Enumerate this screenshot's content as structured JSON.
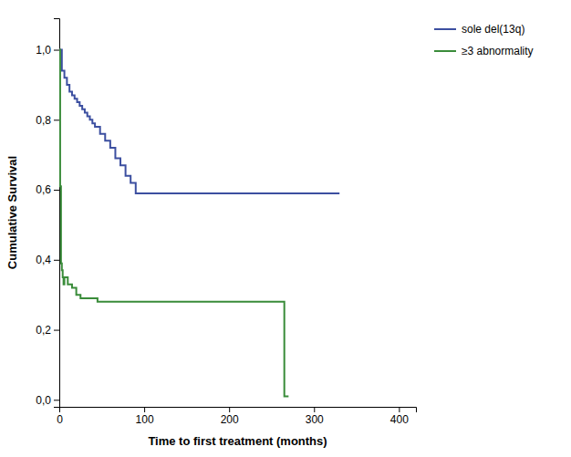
{
  "chart_data": {
    "type": "step",
    "x_label": "Time to first treatment (months)",
    "y_label": "Cumulative Survival",
    "series": [
      {
        "name": "sole del(13q)",
        "color": "#3c4fa0",
        "x": [
          0,
          3,
          3,
          6,
          6,
          9,
          9,
          12,
          12,
          15,
          15,
          18,
          18,
          21,
          21,
          24,
          24,
          27,
          27,
          30,
          30,
          33,
          33,
          36,
          36,
          39,
          39,
          42,
          42,
          48,
          48,
          54,
          54,
          60,
          60,
          66,
          66,
          72,
          72,
          78,
          78,
          84,
          84,
          90,
          90,
          330
        ],
        "values": [
          1.0,
          1.0,
          0.94,
          0.94,
          0.92,
          0.92,
          0.9,
          0.9,
          0.88,
          0.88,
          0.87,
          0.87,
          0.86,
          0.86,
          0.85,
          0.85,
          0.84,
          0.84,
          0.83,
          0.83,
          0.82,
          0.82,
          0.81,
          0.81,
          0.8,
          0.8,
          0.79,
          0.79,
          0.78,
          0.78,
          0.76,
          0.76,
          0.74,
          0.74,
          0.72,
          0.72,
          0.69,
          0.69,
          0.67,
          0.67,
          0.64,
          0.64,
          0.62,
          0.62,
          0.59,
          0.59
        ]
      },
      {
        "name": "≥3 abnormality",
        "color": "#3a8c3a",
        "x": [
          0,
          1,
          1,
          2,
          2,
          3,
          3,
          4,
          4,
          5,
          5,
          6,
          6,
          10,
          10,
          15,
          15,
          20,
          20,
          25,
          25,
          35,
          35,
          45,
          45,
          55,
          55,
          65,
          65,
          75,
          75,
          265,
          265,
          270
        ],
        "values": [
          1.0,
          1.0,
          0.61,
          0.61,
          0.39,
          0.39,
          0.37,
          0.37,
          0.35,
          0.35,
          0.33,
          0.33,
          0.35,
          0.35,
          0.33,
          0.33,
          0.32,
          0.32,
          0.3,
          0.3,
          0.29,
          0.29,
          0.29,
          0.29,
          0.28,
          0.28,
          0.28,
          0.28,
          0.28,
          0.28,
          0.28,
          0.28,
          0.01,
          0.01
        ]
      }
    ],
    "xlim": [
      0,
      420
    ],
    "ylim": [
      -0.02,
      1.09
    ],
    "xticks": [
      0,
      100,
      200,
      300,
      400
    ],
    "yticks": [
      {
        "value": 0.0,
        "label": "0,0"
      },
      {
        "value": 0.2,
        "label": "0,2"
      },
      {
        "value": 0.4,
        "label": "0,4"
      },
      {
        "value": 0.6,
        "label": "0,6"
      },
      {
        "value": 0.8,
        "label": "0,8"
      },
      {
        "value": 1.0,
        "label": "1,0"
      }
    ],
    "grid": false,
    "legend": "right"
  }
}
